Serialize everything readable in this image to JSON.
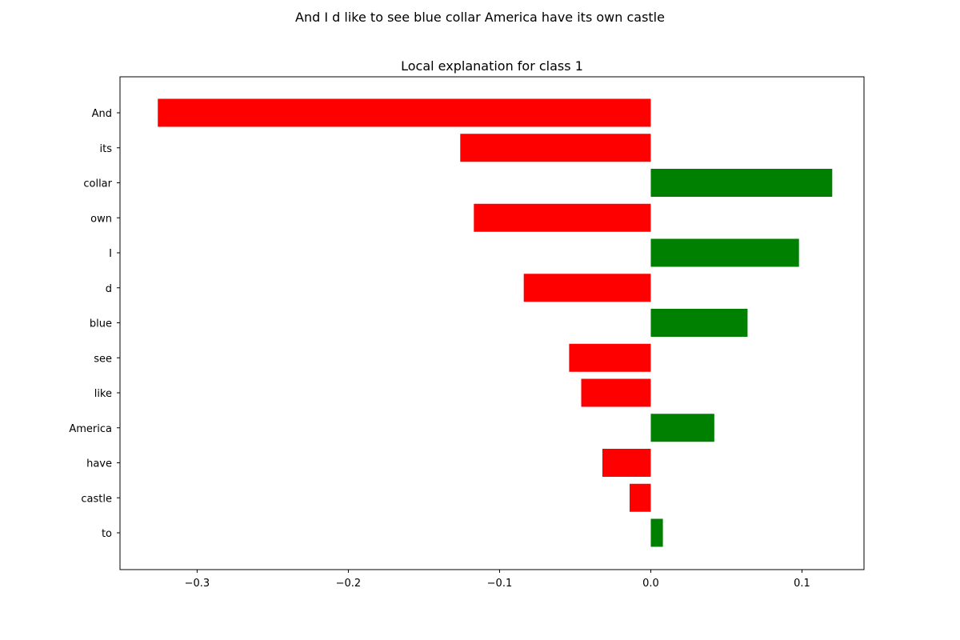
{
  "figure": {
    "suptitle": "And I d like to see blue collar America have its own castle"
  },
  "chart_data": {
    "type": "bar",
    "orientation": "horizontal",
    "title": "Local explanation for class 1",
    "xlabel": "",
    "ylabel": "",
    "categories": [
      "And",
      "its",
      "collar",
      "own",
      "I",
      "d",
      "blue",
      "see",
      "like",
      "America",
      "have",
      "castle",
      "to"
    ],
    "values": [
      -0.326,
      -0.126,
      0.12,
      -0.117,
      0.098,
      -0.084,
      0.064,
      -0.054,
      -0.046,
      0.042,
      -0.032,
      -0.014,
      0.008
    ],
    "xlim": [
      -0.351,
      0.141
    ],
    "xticks": [
      -0.3,
      -0.2,
      -0.1,
      0.0,
      0.1
    ],
    "xtick_labels": [
      "−0.3",
      "−0.2",
      "−0.1",
      "0.0",
      "0.1"
    ],
    "positive_color": "#008000",
    "negative_color": "#ff0000",
    "grid": false,
    "legend": "none"
  }
}
